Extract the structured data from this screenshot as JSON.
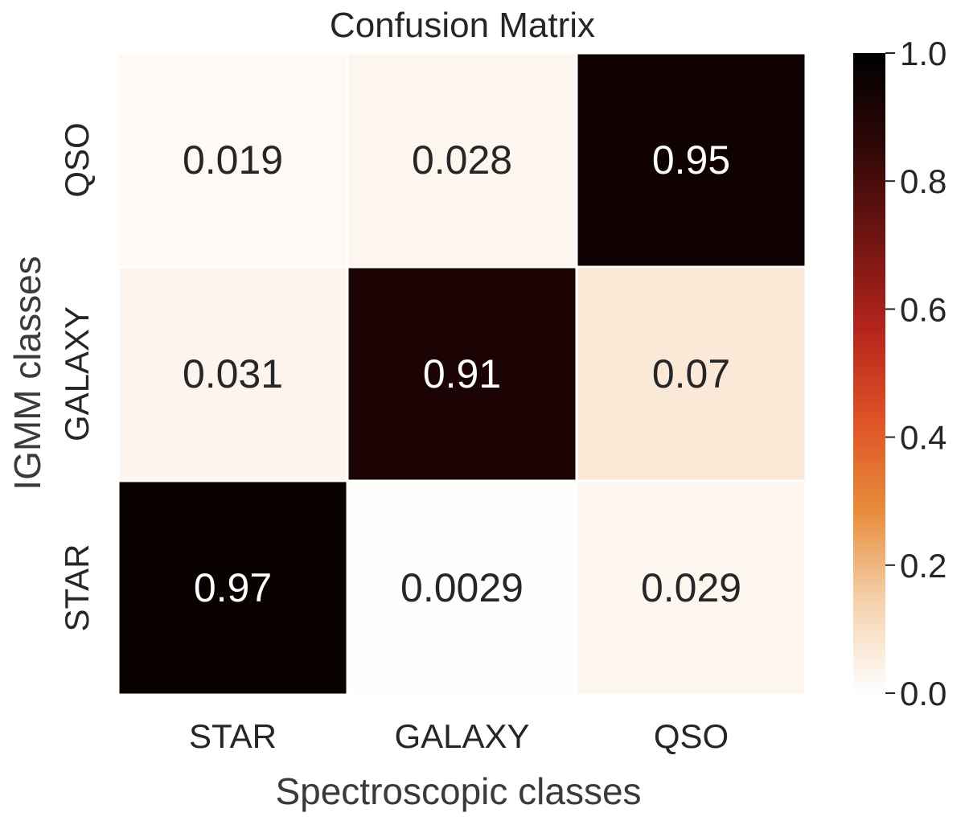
{
  "chart_data": {
    "type": "heatmap",
    "title": "Confusion Matrix",
    "xlabel": "Spectroscopic classes",
    "ylabel": "IGMM classes",
    "x_categories": [
      "STAR",
      "GALAXY",
      "QSO"
    ],
    "y_categories": [
      "QSO",
      "GALAXY",
      "STAR"
    ],
    "values": [
      [
        0.019,
        0.028,
        0.95
      ],
      [
        0.031,
        0.91,
        0.07
      ],
      [
        0.97,
        0.0029,
        0.029
      ]
    ],
    "value_labels": [
      [
        "0.019",
        "0.028",
        "0.95"
      ],
      [
        "0.031",
        "0.91",
        "0.07"
      ],
      [
        "0.97",
        "0.0029",
        "0.029"
      ]
    ],
    "colorbar": {
      "range": [
        0.0,
        1.0
      ],
      "ticks": [
        "0.0",
        "0.2",
        "0.4",
        "0.6",
        "0.8",
        "1.0"
      ],
      "colormap": [
        "#ffffff",
        "#f4d2ad",
        "#e88c3a",
        "#de5226",
        "#b4231c",
        "#6e1410",
        "#2e0707",
        "#000000"
      ]
    },
    "grid": false,
    "cell_border_color": "#ffffff"
  }
}
